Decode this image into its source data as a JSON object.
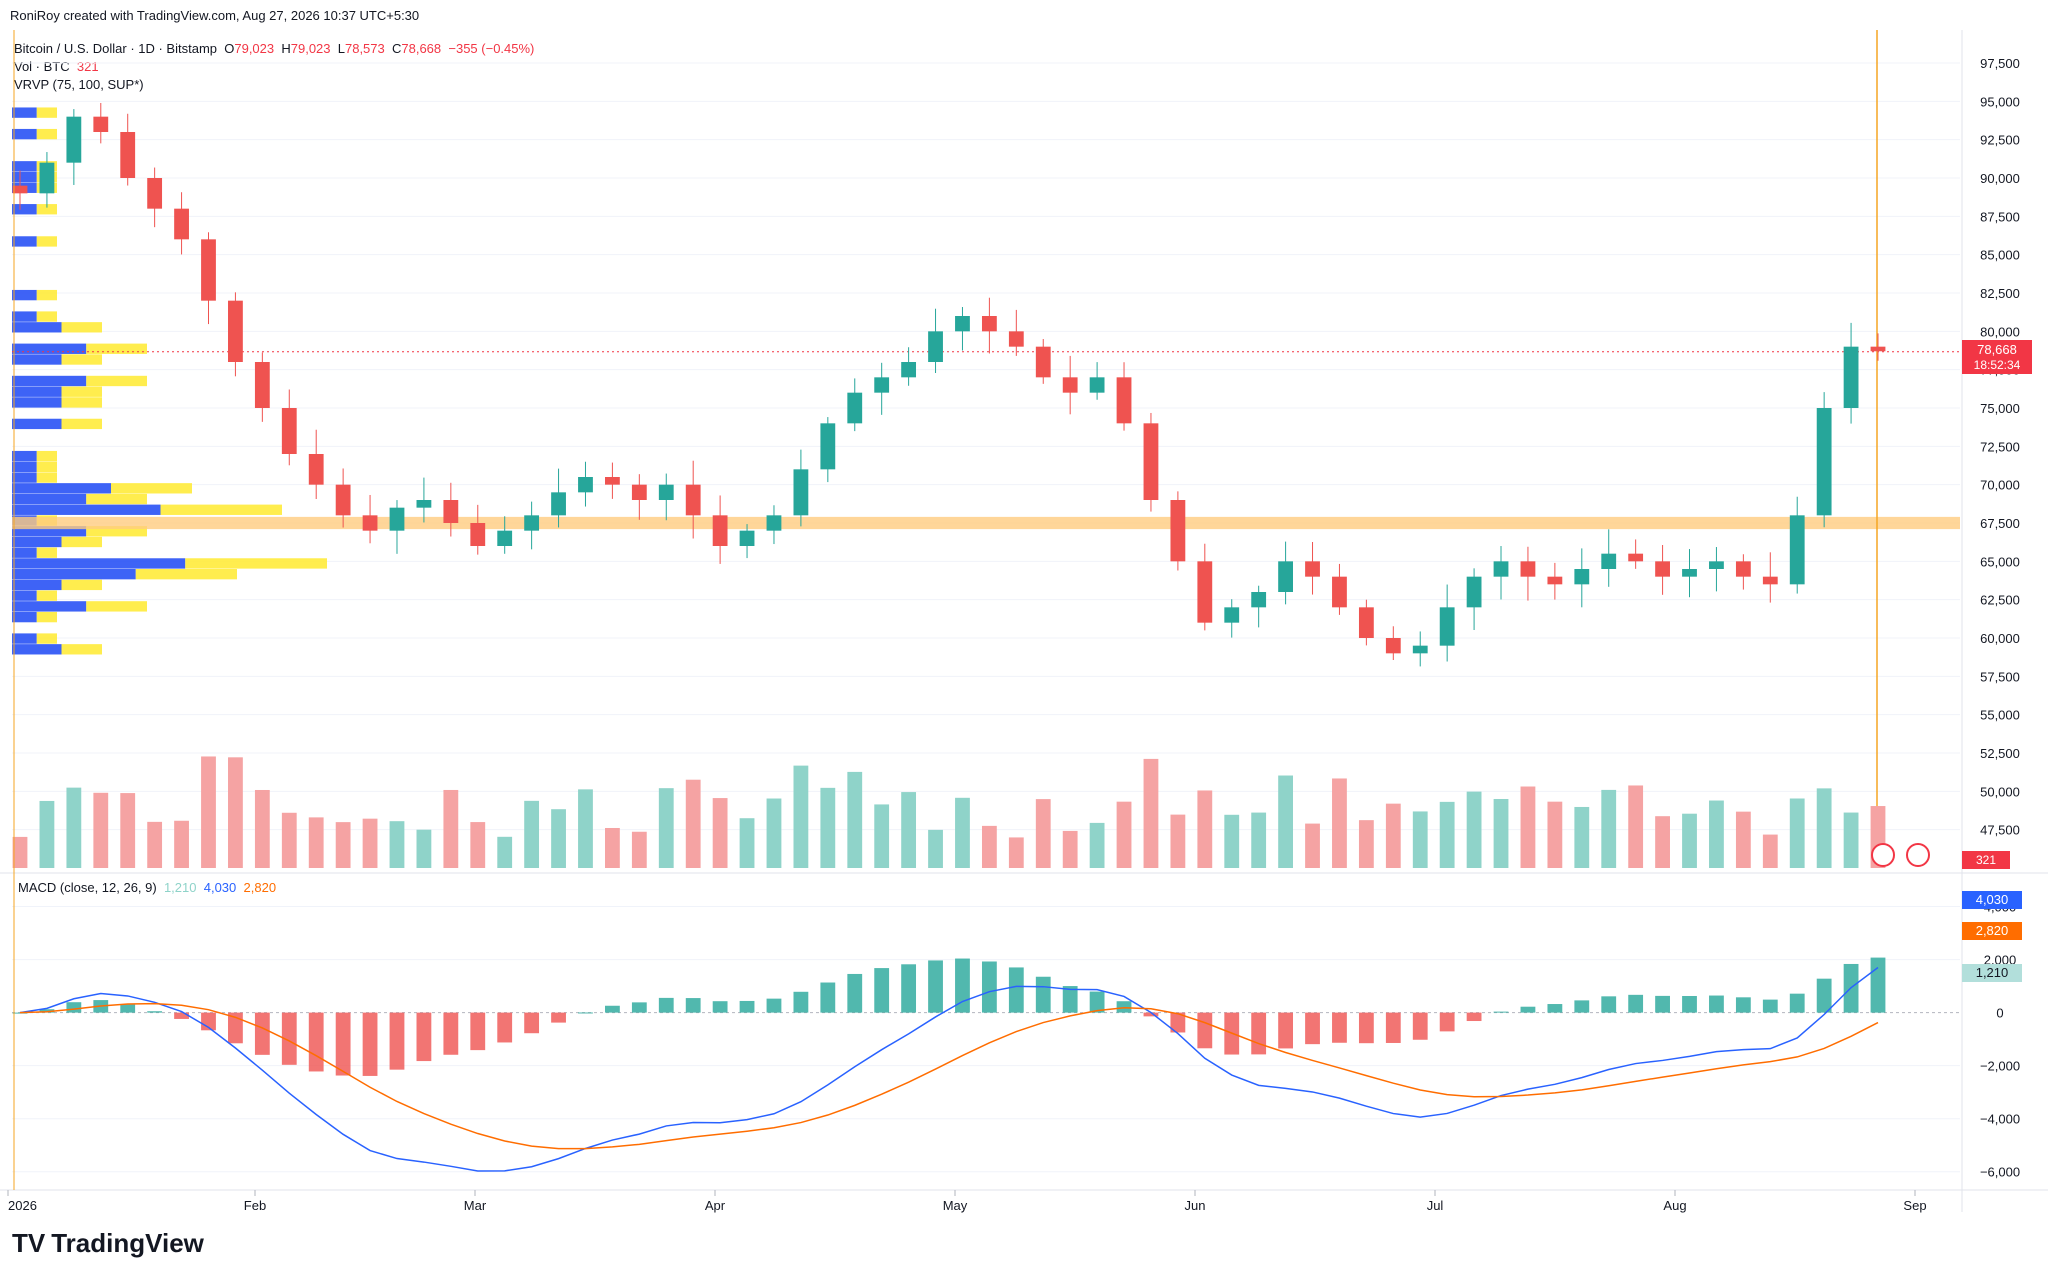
{
  "header": {
    "text": "RoniRoy created with TradingView.com, Aug 27, 2026 10:37 UTC+5:30"
  },
  "legend": {
    "symbol": "Bitcoin / U.S. Dollar · 1D · Bitstamp",
    "o_label": "O",
    "o": "79,023",
    "h_label": "H",
    "h": "79,023",
    "l_label": "L",
    "l": "78,573",
    "c_label": "C",
    "c": "78,668",
    "change": "−355 (−0.45%)",
    "vol_label": "Vol · BTC",
    "vol": "321",
    "vrvp": "VRVP (75, 100, SUP*)"
  },
  "macd_legend": {
    "label": "MACD (close, 12, 26, 9)",
    "hist": "1,210",
    "macd": "4,030",
    "signal": "2,820"
  },
  "price_badge": {
    "price": "78,668",
    "countdown": "18:52:34"
  },
  "vol_badge": "321",
  "macd_badges": {
    "macd": "4,030",
    "signal": "2,820",
    "hist": "1,210"
  },
  "brand": {
    "name": "TradingView",
    "logo": "TV"
  },
  "colors": {
    "up": "#26a69a",
    "down": "#ef5350",
    "vol_up": "#8fd3c9",
    "vol_down": "#f5a3a3",
    "macd": "#2962ff",
    "signal": "#ff6d00",
    "vp_up": "#2952f5",
    "vp_down": "#ffeb3b",
    "zone": "#ffcc80"
  },
  "chart_data": {
    "type": "candlestick",
    "instrument": "Bitcoin / U.S. Dollar",
    "interval": "1D",
    "x_ticks": [
      "2026",
      "Feb",
      "Mar",
      "Apr",
      "May",
      "Jun",
      "Jul",
      "Aug",
      "Sep"
    ],
    "price_ticks": [
      "97,500",
      "95,000",
      "92,500",
      "90,000",
      "87,500",
      "85,000",
      "82,500",
      "80,000",
      "77,500",
      "75,000",
      "72,500",
      "70,000",
      "67,500",
      "65,000",
      "62,500",
      "60,000",
      "57,500",
      "55,000",
      "52,500",
      "50,000",
      "47,500"
    ],
    "price_range": [
      45000,
      99000
    ],
    "last_price": 78668,
    "support_zone": 67500,
    "closes_approx": [
      89000,
      91000,
      94000,
      93000,
      90000,
      88000,
      86000,
      82000,
      78000,
      75000,
      72000,
      70000,
      68000,
      67000,
      68500,
      69000,
      67500,
      66000,
      67000,
      68000,
      69500,
      70500,
      70000,
      69000,
      70000,
      68000,
      66000,
      67000,
      68000,
      71000,
      74000,
      76000,
      77000,
      78000,
      80000,
      81000,
      80000,
      79000,
      77000,
      76000,
      77000,
      74000,
      69000,
      65000,
      61000,
      62000,
      63000,
      65000,
      64000,
      62000,
      60000,
      59000,
      59500,
      62000,
      64000,
      65000,
      64000,
      63500,
      64500,
      65500,
      65000,
      64000,
      64500,
      65000,
      64000,
      63500,
      68000,
      75000,
      79000,
      78700
    ],
    "macd_ticks": [
      "4,000",
      "2,000",
      "0",
      "−2,000",
      "−4,000",
      "−6,000"
    ],
    "macd_range": [
      -6500,
      5000
    ]
  }
}
